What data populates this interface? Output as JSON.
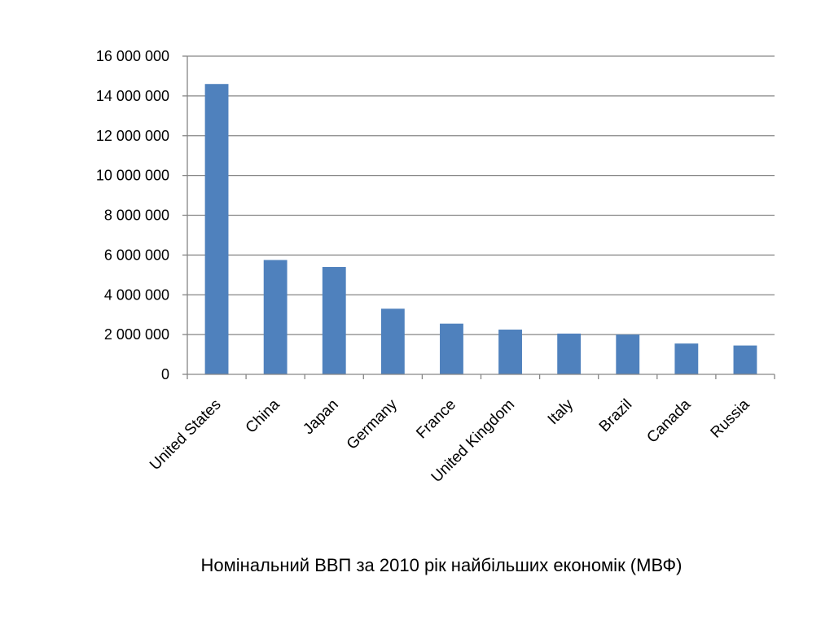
{
  "chart_data": {
    "type": "bar",
    "title": "Номінальний ВВП за 2010 рік найбільших економік (МВФ)",
    "xlabel": "",
    "ylabel": "",
    "categories": [
      "United States",
      "China",
      "Japan",
      "Germany",
      "France",
      "United Kingdom",
      "Italy",
      "Brazil",
      "Canada",
      "Russia"
    ],
    "values": [
      14600000,
      5750000,
      5400000,
      3300000,
      2550000,
      2250000,
      2050000,
      2000000,
      1550000,
      1450000
    ],
    "ylim": [
      0,
      16000000
    ],
    "yticks": [
      0,
      2000000,
      4000000,
      6000000,
      8000000,
      10000000,
      12000000,
      14000000,
      16000000
    ],
    "ytick_labels": [
      "0",
      "2 000 000",
      "4 000 000",
      "6 000 000",
      "8 000 000",
      "10 000 000",
      "12 000 000",
      "14 000 000",
      "16 000 000"
    ],
    "grid": true,
    "legend": "none",
    "bar_color": "#4F81BD",
    "grid_color": "#868686",
    "axis_color": "#868686"
  }
}
